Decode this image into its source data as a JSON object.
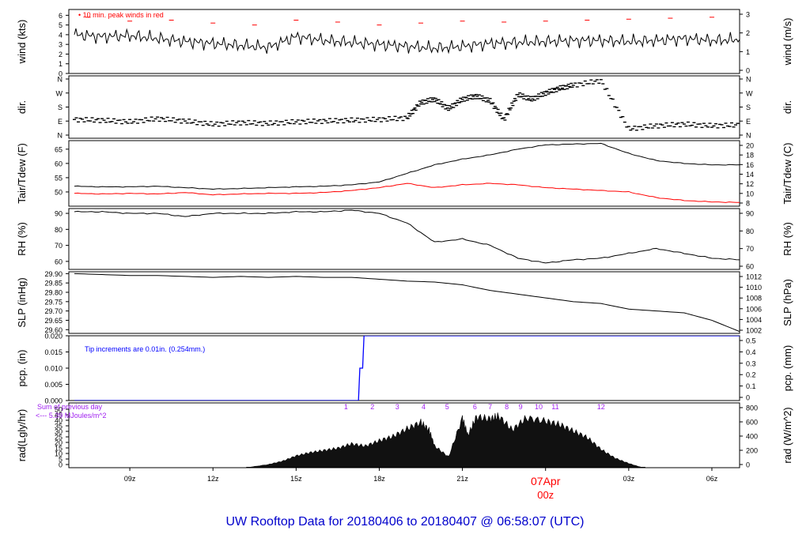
{
  "footer": {
    "prefix": "UW Rooftop Data for",
    "start": "20180406",
    "to": "to",
    "end": "20180407",
    "at": "@",
    "time": "06:58:07",
    "zone": "(UTC)",
    "color": "#0000cc"
  },
  "colors": {
    "frame": "#000000",
    "series": "#000000",
    "peak": "#ff0000",
    "dew": "#ff0000",
    "precip": "#0000ff",
    "radnote": "#a020f0",
    "datelabel": "#ff0000"
  },
  "x_axis": {
    "ticks": [
      "09z",
      "12z",
      "15z",
      "18z",
      "21z",
      "00z",
      "03z",
      "06z"
    ],
    "date_label": "07Apr",
    "date_tick": "00z"
  },
  "chart_data": [
    {
      "id": "wind",
      "type": "line",
      "ylabel_left": "wind (kts)",
      "ylabel_right": "wind (m/s)",
      "ylim": [
        0,
        6.6
      ],
      "left_ticks": [
        "0",
        "1",
        "2",
        "3",
        "4",
        "5",
        "6"
      ],
      "right_ticks": [
        "0",
        "1",
        "2",
        "3"
      ],
      "annotation": "10 min. peak winds in red",
      "series": [
        {
          "name": "wind",
          "x": [
            7.0,
            8.0,
            9.0,
            10.0,
            11.0,
            12.0,
            13.0,
            14.0,
            15.0,
            16.0,
            17.0,
            18.0,
            19.0,
            20.0,
            21.0,
            22.0,
            23.0,
            24.0,
            25.0,
            26.0,
            27.0,
            28.0,
            29.0,
            30.0,
            31.0
          ],
          "values": [
            4.0,
            3.8,
            3.9,
            3.6,
            3.3,
            3.1,
            2.9,
            2.7,
            3.8,
            3.4,
            3.2,
            3.0,
            2.8,
            2.6,
            2.8,
            3.1,
            3.2,
            3.3,
            3.4,
            3.4,
            3.3,
            3.4,
            3.6,
            3.4,
            3.5
          ]
        },
        {
          "name": "peak",
          "x": [
            7.5,
            9.0,
            10.5,
            12.0,
            13.5,
            15.0,
            16.5,
            18.0,
            19.5,
            21.0,
            22.5,
            24.0,
            25.5,
            27.0,
            28.5,
            30.0
          ],
          "values": [
            5.8,
            5.4,
            5.5,
            5.2,
            5.0,
            5.5,
            5.3,
            5.0,
            5.2,
            5.4,
            5.3,
            5.4,
            5.5,
            5.6,
            5.7,
            5.8
          ]
        }
      ]
    },
    {
      "id": "dir",
      "type": "scatter",
      "ylabel_left": "dir.",
      "ylabel_right": "dir.",
      "ylim": [
        0,
        360
      ],
      "left_ticks": [
        "N",
        "E",
        "S",
        "W",
        "N"
      ],
      "right_ticks": [
        "N",
        "E",
        "S",
        "W",
        "N"
      ],
      "series": [
        {
          "name": "direction",
          "x": [
            7.0,
            8.0,
            9.0,
            10.0,
            11.0,
            12.0,
            13.0,
            14.0,
            15.0,
            16.0,
            17.0,
            18.0,
            19.0,
            19.5,
            20.0,
            20.5,
            21.0,
            21.5,
            22.0,
            22.5,
            23.0,
            23.5,
            24.0,
            24.5,
            25.0,
            26.0,
            27.0,
            28.0,
            29.0,
            30.0,
            31.0
          ],
          "values": [
            100,
            95,
            85,
            105,
            90,
            70,
            80,
            75,
            85,
            90,
            95,
            100,
            110,
            210,
            230,
            170,
            230,
            250,
            220,
            100,
            260,
            230,
            270,
            300,
            320,
            350,
            40,
            60,
            70,
            60,
            65
          ]
        }
      ]
    },
    {
      "id": "temp",
      "type": "line",
      "ylabel_left": "Tair/Tdew (F)",
      "ylabel_right": "Tair/Tdew (C)",
      "ylim": [
        45,
        68
      ],
      "left_ticks": [
        "50",
        "55",
        "60",
        "65"
      ],
      "right_ticks": [
        "8",
        "10",
        "12",
        "14",
        "16",
        "18",
        "20"
      ],
      "series": [
        {
          "name": "Tair",
          "x": [
            7.0,
            8.0,
            9.0,
            10.0,
            11.0,
            12.0,
            13.0,
            14.0,
            15.0,
            16.0,
            17.0,
            18.0,
            19.0,
            20.0,
            21.0,
            22.0,
            23.0,
            24.0,
            25.0,
            26.0,
            27.0,
            28.0,
            29.0,
            30.0,
            31.0
          ],
          "values": [
            52.0,
            51.8,
            51.8,
            52.0,
            51.5,
            51.0,
            51.2,
            51.5,
            51.8,
            52.0,
            52.5,
            53.5,
            56.5,
            59.5,
            61.5,
            63.0,
            65.0,
            66.5,
            66.8,
            67.0,
            63.5,
            61.0,
            60.0,
            59.5,
            59.5
          ]
        },
        {
          "name": "Tdew",
          "x": [
            7.0,
            8.0,
            9.0,
            10.0,
            11.0,
            12.0,
            13.0,
            14.0,
            15.0,
            16.0,
            17.0,
            18.0,
            19.0,
            20.0,
            21.0,
            22.0,
            23.0,
            24.0,
            25.0,
            26.0,
            27.0,
            28.0,
            29.0,
            30.0,
            31.0
          ],
          "values": [
            49.5,
            49.3,
            49.5,
            49.3,
            49.8,
            49.0,
            49.3,
            49.5,
            49.5,
            49.8,
            50.5,
            51.5,
            53.0,
            51.5,
            52.5,
            53.0,
            52.5,
            51.5,
            51.0,
            50.5,
            50.0,
            48.0,
            47.0,
            46.5,
            46.3
          ]
        }
      ]
    },
    {
      "id": "rh",
      "type": "line",
      "ylabel_left": "RH (%)",
      "ylabel_right": "RH (%)",
      "ylim": [
        55,
        93
      ],
      "left_ticks": [
        "60",
        "70",
        "80",
        "90"
      ],
      "right_ticks": [
        "60",
        "70",
        "80",
        "90"
      ],
      "series": [
        {
          "name": "RH",
          "x": [
            7.0,
            8.0,
            9.0,
            10.0,
            11.0,
            12.0,
            13.0,
            14.0,
            15.0,
            16.0,
            17.0,
            18.0,
            19.0,
            20.0,
            21.0,
            22.0,
            23.0,
            24.0,
            25.0,
            26.0,
            27.0,
            28.0,
            29.0,
            30.0,
            31.0
          ],
          "values": [
            91,
            91,
            90,
            90,
            88,
            90,
            90,
            90,
            91,
            91,
            92,
            90,
            84,
            72,
            74,
            70,
            62,
            59,
            61,
            62,
            65,
            68,
            65,
            62,
            61
          ]
        }
      ]
    },
    {
      "id": "slp",
      "type": "line",
      "ylabel_left": "SLP (inHg)",
      "ylabel_right": "SLP (hPa)",
      "ylim": [
        29.58,
        29.91
      ],
      "left_ticks": [
        "29.60",
        "29.65",
        "29.70",
        "29.75",
        "29.80",
        "29.85",
        "29.90"
      ],
      "right_ticks": [
        "1002",
        "1004",
        "1006",
        "1008",
        "1010",
        "1012"
      ],
      "series": [
        {
          "name": "SLP",
          "x": [
            7.0,
            8.0,
            9.0,
            10.0,
            11.0,
            12.0,
            13.0,
            14.0,
            15.0,
            16.0,
            17.0,
            18.0,
            19.0,
            20.0,
            21.0,
            22.0,
            23.0,
            24.0,
            25.0,
            26.0,
            27.0,
            28.0,
            29.0,
            30.0,
            31.0
          ],
          "values": [
            29.9,
            29.895,
            29.89,
            29.89,
            29.885,
            29.88,
            29.885,
            29.88,
            29.885,
            29.88,
            29.88,
            29.87,
            29.86,
            29.855,
            29.84,
            29.81,
            29.79,
            29.77,
            29.75,
            29.74,
            29.71,
            29.7,
            29.69,
            29.65,
            29.59
          ]
        }
      ]
    },
    {
      "id": "pcp",
      "type": "line",
      "ylabel_left": "pcp. (in)",
      "ylabel_right": "pcp. (mm)",
      "ylim": [
        0,
        0.02
      ],
      "left_ticks": [
        "0.000",
        "0.005",
        "0.010",
        "0.015",
        "0.020"
      ],
      "right_ticks": [
        "0",
        "0.1",
        "0.2",
        "0.3",
        "0.4",
        "0.5"
      ],
      "annotation": "Tip increments are 0.01in. (0.254mm.)",
      "series": [
        {
          "name": "pcp",
          "x": [
            7.0,
            17.25,
            17.3,
            17.4,
            17.45,
            31.0
          ],
          "values": [
            0,
            0,
            0.01,
            0.01,
            0.02,
            0.02
          ]
        }
      ]
    },
    {
      "id": "rad",
      "type": "area",
      "ylabel_left": "rad(Lgly/hr)",
      "ylabel_right": "rad (W/m^2)",
      "ylim": [
        0,
        60
      ],
      "left_ticks": [
        "0",
        "5",
        "10",
        "15",
        "20",
        "25",
        "30",
        "35",
        "40",
        "45",
        "50"
      ],
      "right_ticks": [
        "0",
        "200",
        "400",
        "600",
        "800"
      ],
      "annotation_line1": "Sum of previous day",
      "annotation_line2": "<--- 5.39 MJoules/m^2",
      "hour_labels": [
        "1",
        "2",
        "3",
        "4",
        "5",
        "6",
        "7",
        "8",
        "9",
        "10",
        "11",
        "12"
      ],
      "hour_x": [
        16.8,
        17.75,
        18.65,
        19.6,
        20.45,
        21.45,
        22.0,
        22.6,
        23.1,
        23.75,
        24.35,
        26.0
      ],
      "series": [
        {
          "name": "radiation",
          "x": [
            13.2,
            14.0,
            14.5,
            15.0,
            15.5,
            16.0,
            16.5,
            17.0,
            17.5,
            18.0,
            18.5,
            19.0,
            19.5,
            19.8,
            20.0,
            20.5,
            21.0,
            21.2,
            21.5,
            22.0,
            22.3,
            22.8,
            23.3,
            24.0,
            24.5,
            25.0,
            25.5,
            26.0,
            26.5,
            27.0,
            27.5
          ],
          "values": [
            0,
            3,
            6,
            11,
            14,
            16,
            18,
            22,
            20,
            25,
            29,
            36,
            42,
            35,
            20,
            10,
            46,
            30,
            47,
            45,
            48,
            35,
            46,
            43,
            40,
            34,
            28,
            17,
            9,
            4,
            0
          ]
        }
      ]
    }
  ]
}
